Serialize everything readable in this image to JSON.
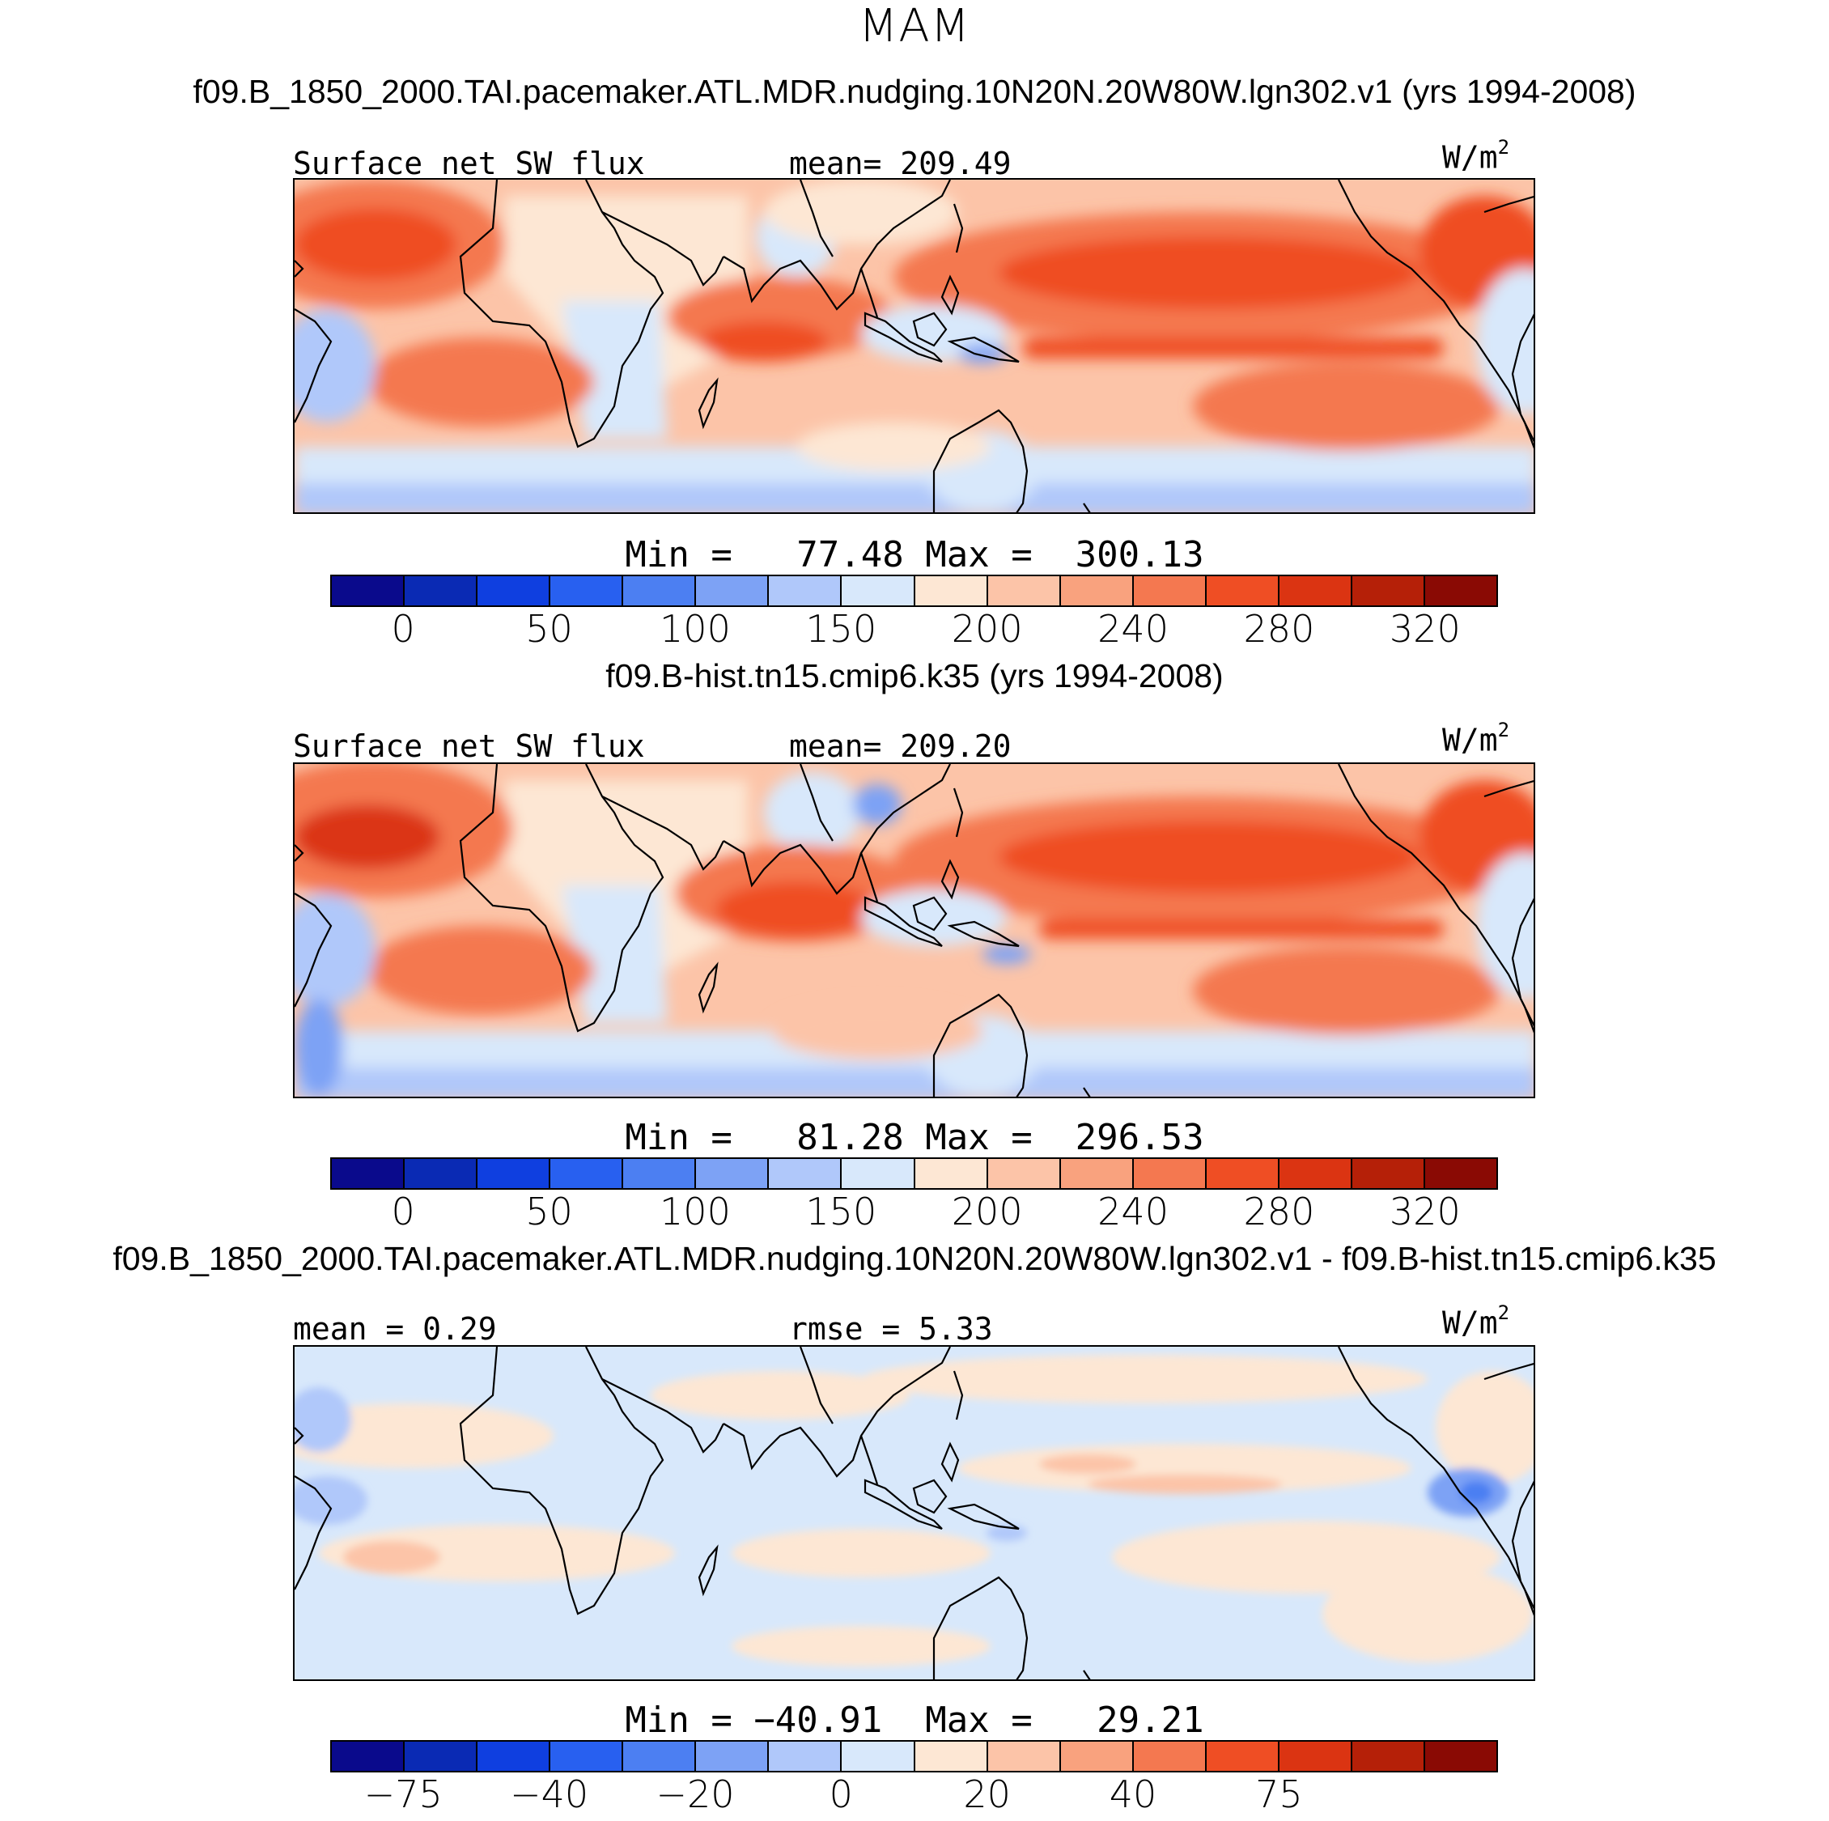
{
  "figure": {
    "season": "MAM",
    "diff_title": "f09.B_1850_2000.TAI.pacemaker.ATL.MDR.nudging.10N20N.20W80W.lgn302.v1 - f09.B-hist.tn15.cmip6.k35",
    "colors": {
      "abs_palette": [
        "#0a0a8c",
        "#0a2ab4",
        "#0f3fe0",
        "#2860f0",
        "#4c7ff2",
        "#7da2f5",
        "#b0c8fa",
        "#d8e8fb",
        "#fde7d4",
        "#fcc4a8",
        "#f9a27e",
        "#f47850",
        "#ef4e24",
        "#db3412",
        "#b52008",
        "#8a0a04"
      ],
      "diff_palette": [
        "#0a0a8c",
        "#0a2ab4",
        "#0f3fe0",
        "#2860f0",
        "#4c7ff2",
        "#7da2f5",
        "#b0c8fa",
        "#d8e8fb",
        "#fde7d4",
        "#fcc4a8",
        "#f9a27e",
        "#f47850",
        "#ef4e24",
        "#db3412",
        "#b52008",
        "#8a0a04"
      ]
    }
  },
  "panels": [
    {
      "case_title": "f09.B_1850_2000.TAI.pacemaker.ATL.MDR.nudging.10N20N.20W80W.lgn302.v1 (yrs 1994-2008)",
      "left_label": "Surface net SW flux",
      "center_label": "mean= 209.49",
      "units": "W/m",
      "units_sup": "2",
      "minmax": "Min =   77.48 Max =  300.13",
      "ticks": [
        "0",
        "50",
        "100",
        "150",
        "200",
        "240",
        "280",
        "320"
      ]
    },
    {
      "case_title": "f09.B-hist.tn15.cmip6.k35 (yrs 1994-2008)",
      "left_label": "Surface net SW flux",
      "center_label": "mean= 209.20",
      "units": "W/m",
      "units_sup": "2",
      "minmax": "Min =   81.28 Max =  296.53",
      "ticks": [
        "0",
        "50",
        "100",
        "150",
        "200",
        "240",
        "280",
        "320"
      ]
    },
    {
      "left_label": "mean =    0.29",
      "center_label": "rmse =    5.33",
      "units": "W/m",
      "units_sup": "2",
      "minmax": "Min = −40.91  Max =   29.21",
      "ticks": [
        "−75",
        "−40",
        "−20",
        "0",
        "20",
        "40",
        "75"
      ]
    }
  ]
}
